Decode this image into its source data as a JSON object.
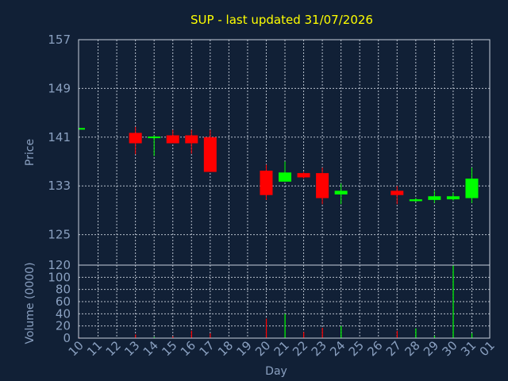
{
  "chart_data": [
    {
      "type": "candlestick",
      "title": "SUP - last updated 31/07/2026",
      "ylabel": "Price",
      "ylim": [
        120,
        157
      ],
      "yticks": [
        157,
        149,
        141,
        133,
        125,
        120
      ],
      "grid": true,
      "colors": {
        "up": "#00ff00",
        "down": "#ff0000",
        "text": "#8aa0c0",
        "title": "#ffff00",
        "background": "#112036",
        "grid": "#c8d0dc"
      },
      "x": [
        "10",
        "11",
        "12",
        "13",
        "14",
        "15",
        "16",
        "17",
        "18",
        "19",
        "20",
        "21",
        "22",
        "23",
        "24",
        "25",
        "26",
        "27",
        "28",
        "29",
        "30",
        "31",
        "01"
      ],
      "candles": [
        {
          "day": "10",
          "open": 142.3,
          "close": 142.5,
          "high": 142.5,
          "low": 142.3
        },
        {
          "day": "13",
          "open": 141.7,
          "close": 140.0,
          "high": 142.7,
          "low": 138.2
        },
        {
          "day": "14",
          "open": 140.9,
          "close": 141.1,
          "high": 141.3,
          "low": 137.9
        },
        {
          "day": "15",
          "open": 141.3,
          "close": 140.0,
          "high": 142.2,
          "low": 140.0
        },
        {
          "day": "16",
          "open": 141.3,
          "close": 140.0,
          "high": 142.2,
          "low": 138.3
        },
        {
          "day": "17",
          "open": 141.0,
          "close": 135.3,
          "high": 142.2,
          "low": 135.3
        },
        {
          "day": "20",
          "open": 135.5,
          "close": 131.5,
          "high": 136.5,
          "low": 130.7
        },
        {
          "day": "21",
          "open": 133.7,
          "close": 135.2,
          "high": 137.0,
          "low": 133.7
        },
        {
          "day": "22",
          "open": 135.1,
          "close": 134.4,
          "high": 135.3,
          "low": 134.2
        },
        {
          "day": "23",
          "open": 135.1,
          "close": 131.0,
          "high": 136.0,
          "low": 130.0
        },
        {
          "day": "24",
          "open": 131.6,
          "close": 132.2,
          "high": 133.4,
          "low": 130.0
        },
        {
          "day": "27",
          "open": 132.2,
          "close": 131.5,
          "high": 133.0,
          "low": 130.0
        },
        {
          "day": "28",
          "open": 130.5,
          "close": 130.8,
          "high": 131.0,
          "low": 130.4
        },
        {
          "day": "29",
          "open": 130.7,
          "close": 131.3,
          "high": 132.2,
          "low": 130.2
        },
        {
          "day": "30",
          "open": 130.8,
          "close": 131.3,
          "high": 131.9,
          "low": 130.6
        },
        {
          "day": "31",
          "open": 131.0,
          "close": 134.2,
          "high": 136.0,
          "low": 130.2
        }
      ]
    },
    {
      "type": "bar",
      "ylabel": "Volume (0000)",
      "xlabel": "Day",
      "ylim": [
        0,
        120
      ],
      "yticks": [
        0,
        20,
        40,
        60,
        80,
        100
      ],
      "grid": true,
      "categories": [
        "10",
        "11",
        "12",
        "13",
        "14",
        "15",
        "16",
        "17",
        "18",
        "19",
        "20",
        "21",
        "22",
        "23",
        "24",
        "25",
        "26",
        "27",
        "28",
        "29",
        "30",
        "31",
        "01"
      ],
      "values": [
        1,
        0,
        0,
        6,
        2,
        3,
        12,
        8,
        0,
        0,
        32,
        40,
        10,
        17,
        20,
        0,
        0,
        12,
        16,
        4,
        130,
        8,
        0
      ],
      "bar_colors": [
        "#ff0000",
        "#000000",
        "#000000",
        "#ff0000",
        "#00ff00",
        "#ff0000",
        "#ff0000",
        "#ff0000",
        "#000000",
        "#000000",
        "#ff0000",
        "#00ff00",
        "#ff0000",
        "#ff0000",
        "#00ff00",
        "#000000",
        "#000000",
        "#ff0000",
        "#00ff00",
        "#00ff00",
        "#00ff00",
        "#00ff00",
        "#000000"
      ]
    }
  ]
}
